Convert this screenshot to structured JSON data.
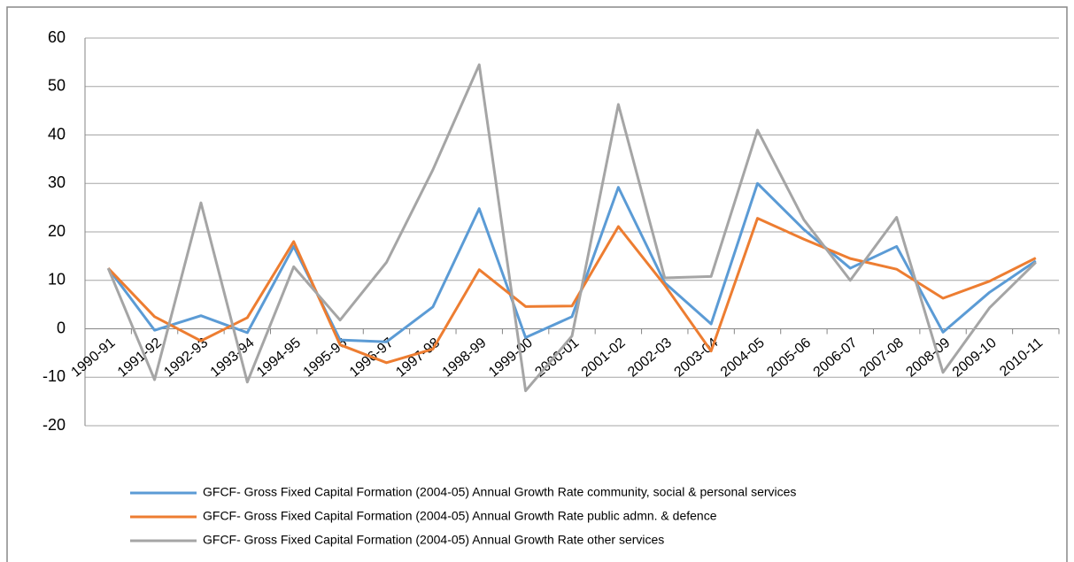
{
  "chart_data": {
    "type": "line",
    "categories": [
      "1990-91",
      "1991-92",
      "1992-93",
      "1993-94",
      "1994-95",
      "1995-96",
      "1996-97",
      "1997-98",
      "1998-99",
      "1999-00",
      "2000-01",
      "2001-02",
      "2002-03",
      "2003-04",
      "2004-05",
      "2005-06",
      "2006-07",
      "2007-08",
      "2008-09",
      "2009-10",
      "2010-11"
    ],
    "series": [
      {
        "name": "GFCF- Gross Fixed Capital Formation (2004-05) Annual Growth Rate community, social & personal services",
        "color": "#5b9bd5",
        "values": [
          12.5,
          -0.3,
          2.7,
          -0.8,
          17,
          -2.3,
          -2.7,
          4.5,
          24.8,
          -1.8,
          2.5,
          29.2,
          9.5,
          1,
          30,
          20.5,
          12.5,
          17,
          -0.7,
          7.5,
          14
        ]
      },
      {
        "name": "GFCF- Gross Fixed Capital Formation (2004-05) Annual Growth Rate public admn. & defence",
        "color": "#ed7d31",
        "values": [
          12.5,
          2.5,
          -2.5,
          2.3,
          18,
          -3.3,
          -7,
          -4.2,
          12.2,
          4.6,
          4.7,
          21.1,
          9,
          -4.6,
          22.8,
          18.5,
          14.5,
          12.3,
          6.3,
          9.8,
          14.6
        ]
      },
      {
        "name": "GFCF- Gross Fixed Capital Formation (2004-05) Annual Growth Rate other services",
        "color": "#a5a5a5",
        "values": [
          12.5,
          -10.5,
          26,
          -11,
          12.8,
          1.8,
          13.7,
          32.8,
          54.5,
          -12.8,
          -1.5,
          46.3,
          10.5,
          10.8,
          41,
          22.5,
          10,
          23,
          -9,
          4.3,
          13.7
        ]
      }
    ],
    "ylim": [
      -20,
      60
    ],
    "yticks": [
      -20,
      -10,
      0,
      10,
      20,
      30,
      40,
      50,
      60
    ],
    "grid": true,
    "legend": "bottom"
  }
}
